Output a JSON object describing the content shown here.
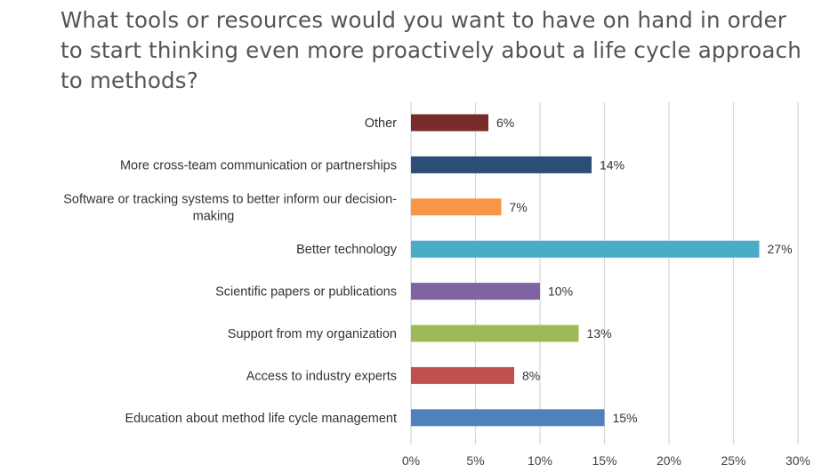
{
  "chart_data": {
    "type": "bar",
    "orientation": "horizontal",
    "title": "What tools or resources would you want to have on hand in order to start thinking even more proactively about a life cycle approach to methods?",
    "title_lines": [
      "What tools or resources would you want to have on hand in order",
      "to start thinking even more proactively about a life cycle approach",
      "to methods?"
    ],
    "categories": [
      [
        "Other"
      ],
      [
        "More cross-team communication or partnerships"
      ],
      [
        "Software or tracking systems to better inform our decision-",
        "making"
      ],
      [
        "Better technology"
      ],
      [
        "Scientific papers or publications"
      ],
      [
        "Support from my organization"
      ],
      [
        "Access to industry experts"
      ],
      [
        "Education about method life cycle management"
      ]
    ],
    "values": [
      6,
      14,
      7,
      27,
      10,
      13,
      8,
      15
    ],
    "data_labels": [
      "6%",
      "14%",
      "7%",
      "27%",
      "10%",
      "13%",
      "8%",
      "15%"
    ],
    "colors": [
      "#772c2a",
      "#2c4d75",
      "#f79646",
      "#4bacc6",
      "#8064a2",
      "#9bbb59",
      "#c0504d",
      "#4f81bd"
    ],
    "xlim": [
      0,
      30
    ],
    "xticks": [
      0,
      5,
      10,
      15,
      20,
      25,
      30
    ],
    "xtick_labels": [
      "0%",
      "5%",
      "10%",
      "15%",
      "20%",
      "25%",
      "30%"
    ],
    "grid": true,
    "xlabel": "",
    "ylabel": ""
  }
}
